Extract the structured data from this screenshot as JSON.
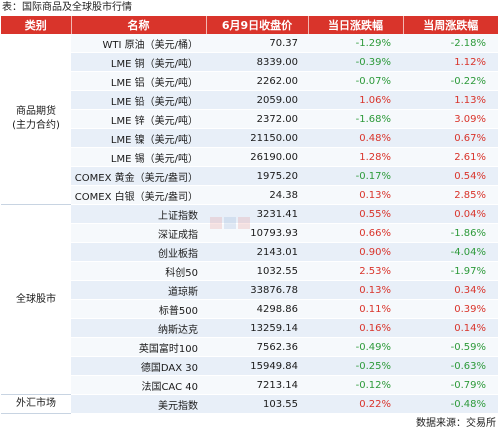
{
  "caption": "表：国际商品及全球股市行情",
  "headers": {
    "category": "类别",
    "name": "名称",
    "price": "6月9日收盘价",
    "day": "当日涨跌幅",
    "week": "当周涨跌幅"
  },
  "categories": {
    "commodities": "商品期货\n(主力合约)",
    "stocks": "全球股市",
    "fx": "外汇市场"
  },
  "rows": [
    {
      "name": "WTI 原油（美元/桶）",
      "price": "70.37",
      "day": "-1.29%",
      "week": "-2.18%"
    },
    {
      "name": "LME 铜（美元/吨）",
      "price": "8339.00",
      "day": "-0.39%",
      "week": "1.12%"
    },
    {
      "name": "LME 铝（美元/吨）",
      "price": "2262.00",
      "day": "-0.07%",
      "week": "-0.22%"
    },
    {
      "name": "LME 铅（美元/吨）",
      "price": "2059.00",
      "day": "1.06%",
      "week": "1.13%"
    },
    {
      "name": "LME 锌（美元/吨）",
      "price": "2372.00",
      "day": "-1.68%",
      "week": "3.09%"
    },
    {
      "name": "LME 镍（美元/吨）",
      "price": "21150.00",
      "day": "0.48%",
      "week": "0.67%"
    },
    {
      "name": "LME 锡（美元/吨）",
      "price": "26190.00",
      "day": "1.28%",
      "week": "2.61%"
    },
    {
      "name": "COMEX 黄金（美元/盎司）",
      "price": "1975.20",
      "day": "-0.17%",
      "week": "0.54%"
    },
    {
      "name": "COMEX 白银（美元/盎司）",
      "price": "24.38",
      "day": "0.13%",
      "week": "2.85%"
    },
    {
      "name": "上证指数",
      "price": "3231.41",
      "day": "0.55%",
      "week": "0.04%"
    },
    {
      "name": "深证成指",
      "price": "10793.93",
      "day": "0.66%",
      "week": "-1.86%"
    },
    {
      "name": "创业板指",
      "price": "2143.01",
      "day": "0.90%",
      "week": "-4.04%"
    },
    {
      "name": "科创50",
      "price": "1032.55",
      "day": "2.53%",
      "week": "-1.97%"
    },
    {
      "name": "道琼斯",
      "price": "33876.78",
      "day": "0.13%",
      "week": "0.34%"
    },
    {
      "name": "标普500",
      "price": "4298.86",
      "day": "0.11%",
      "week": "0.39%"
    },
    {
      "name": "纳斯达克",
      "price": "13259.14",
      "day": "0.16%",
      "week": "0.14%"
    },
    {
      "name": "英国富时100",
      "price": "7562.36",
      "day": "-0.49%",
      "week": "-0.59%"
    },
    {
      "name": "德国DAX 30",
      "price": "15949.84",
      "day": "-0.25%",
      "week": "-0.63%"
    },
    {
      "name": "法国CAC 40",
      "price": "7213.14",
      "day": "-0.12%",
      "week": "-0.79%"
    },
    {
      "name": "美元指数",
      "price": "103.55",
      "day": "0.22%",
      "week": "-0.48%"
    }
  ],
  "source": "数据来源：交易所",
  "colors": {
    "header_bg": "#d9342b",
    "up": "#d9342b",
    "down": "#2d9a3a",
    "row_alt": "#e8eff8"
  }
}
